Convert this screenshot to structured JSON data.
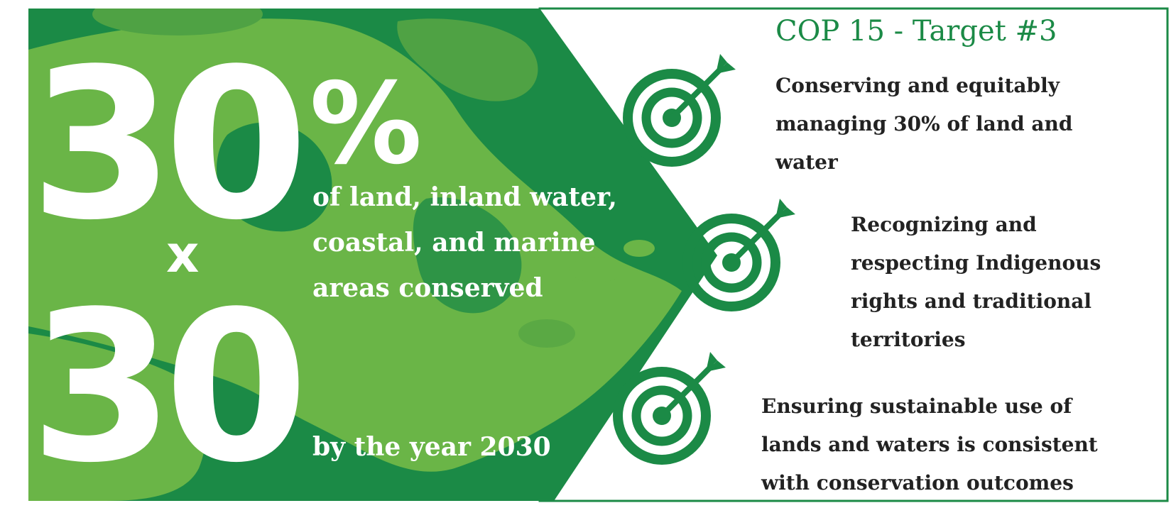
{
  "left_panel": {
    "big_number_top": "30",
    "percent_sign": "%",
    "multiplier": "x",
    "big_number_bottom": "30",
    "conserved_lines": [
      "of land, inland water,",
      "coastal, and marine",
      "areas conserved"
    ],
    "year_line": "by the year 2030"
  },
  "right_panel": {
    "title": "COP 15 - Target #3",
    "targets": [
      {
        "icon": "target-dart-icon",
        "lines": [
          "Conserving and equitably",
          "managing 30% of land and",
          "water"
        ]
      },
      {
        "icon": "target-dart-icon",
        "lines": [
          "Recognizing and",
          "respecting Indigenous",
          "rights and traditional",
          "territories"
        ]
      },
      {
        "icon": "target-dart-icon",
        "lines": [
          "Ensuring sustainable use of",
          "lands and waters is consistent",
          "with conservation outcomes"
        ]
      }
    ]
  },
  "colors": {
    "dark_green": "#1b8a46",
    "light_green": "#6ab547",
    "text_dark": "#222222",
    "white": "#ffffff"
  }
}
